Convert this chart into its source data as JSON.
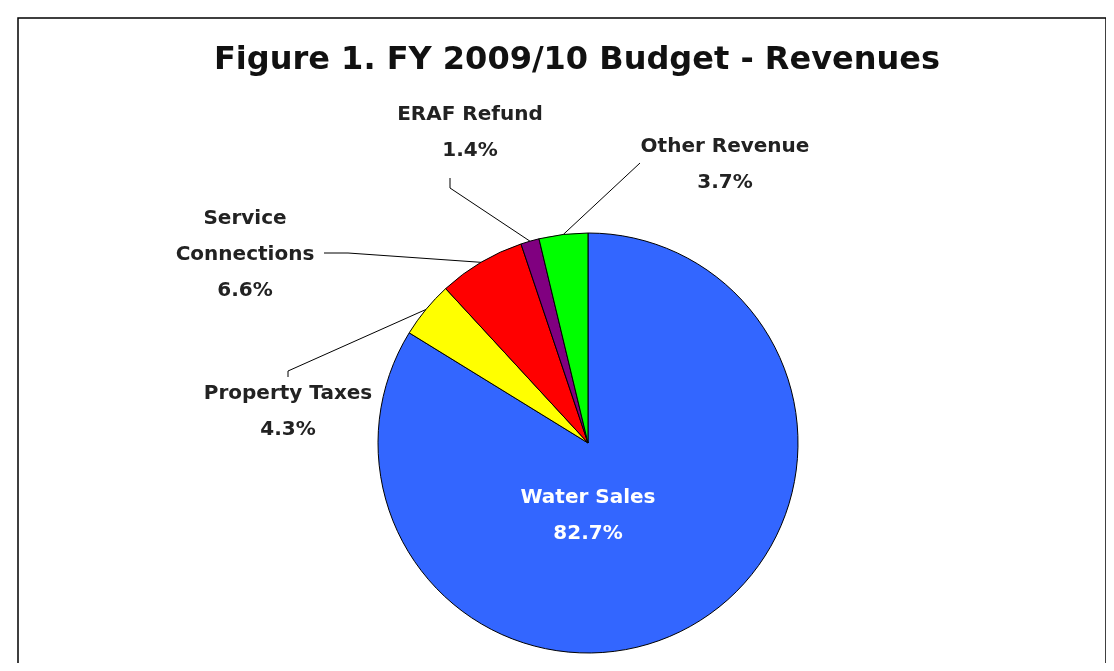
{
  "chart_data": {
    "type": "pie",
    "title": "Figure 1. FY 2009/10 Budget - Revenues",
    "categories": [
      "Water Sales",
      "Property Taxes",
      "Service Connections",
      "ERAF Refund",
      "Other Revenue"
    ],
    "values": [
      82.7,
      4.3,
      6.6,
      1.4,
      3.7
    ],
    "value_labels": [
      "82.7%",
      "4.3%",
      "6.6%",
      "1.4%",
      "3.7%"
    ],
    "colors": [
      "#3366ff",
      "#ffff00",
      "#ff0000",
      "#800080",
      "#00ff00"
    ],
    "legend": false
  }
}
